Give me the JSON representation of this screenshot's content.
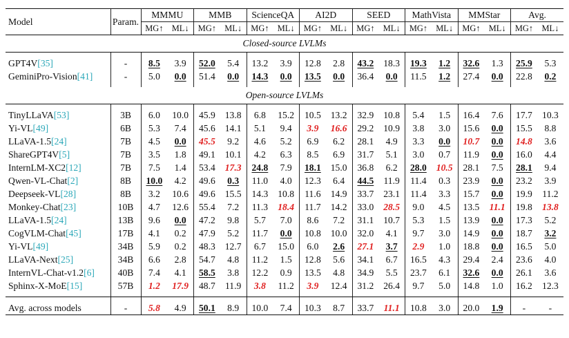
{
  "header": {
    "model": "Model",
    "param": "Param.",
    "benchmarks": [
      "MMMU",
      "MMB",
      "ScienceQA",
      "AI2D",
      "SEED",
      "MathVista",
      "MMStar",
      "Avg."
    ],
    "mg": "MG↑",
    "ml": "ML↓"
  },
  "sections": [
    {
      "title": "Closed-source LVLMs",
      "rows": [
        {
          "model": "GPT4V",
          "cite": "[35]",
          "param": "-",
          "cells": [
            {
              "v": "8.5",
              "s": "bu"
            },
            {
              "v": "3.9"
            },
            {
              "v": "52.0",
              "s": "bu"
            },
            {
              "v": "5.4"
            },
            {
              "v": "13.2"
            },
            {
              "v": "3.9"
            },
            {
              "v": "12.8"
            },
            {
              "v": "2.8"
            },
            {
              "v": "43.2",
              "s": "bu"
            },
            {
              "v": "18.3"
            },
            {
              "v": "19.3",
              "s": "bu"
            },
            {
              "v": "1.2",
              "s": "bu"
            },
            {
              "v": "32.6",
              "s": "bu"
            },
            {
              "v": "1.3"
            },
            {
              "v": "25.9",
              "s": "bu"
            },
            {
              "v": "5.3"
            }
          ]
        },
        {
          "model": "GeminiPro-Vision",
          "cite": "[41]",
          "param": "-",
          "cells": [
            {
              "v": "5.0"
            },
            {
              "v": "0.0",
              "s": "bu"
            },
            {
              "v": "51.4"
            },
            {
              "v": "0.0",
              "s": "bu"
            },
            {
              "v": "14.3",
              "s": "bu"
            },
            {
              "v": "0.0",
              "s": "bu"
            },
            {
              "v": "13.5",
              "s": "bu"
            },
            {
              "v": "0.0",
              "s": "bu"
            },
            {
              "v": "36.4"
            },
            {
              "v": "0.0",
              "s": "bu"
            },
            {
              "v": "11.5"
            },
            {
              "v": "1.2",
              "s": "bu"
            },
            {
              "v": "27.4"
            },
            {
              "v": "0.0",
              "s": "bu"
            },
            {
              "v": "22.8"
            },
            {
              "v": "0.2",
              "s": "bu"
            }
          ]
        }
      ]
    },
    {
      "title": "Open-source LVLMs",
      "rows": [
        {
          "model": "TinyLLaVA",
          "cite": "[53]",
          "param": "3B",
          "cells": [
            {
              "v": "6.0"
            },
            {
              "v": "10.0"
            },
            {
              "v": "45.9"
            },
            {
              "v": "13.8"
            },
            {
              "v": "6.8"
            },
            {
              "v": "15.2"
            },
            {
              "v": "10.5"
            },
            {
              "v": "13.2"
            },
            {
              "v": "32.9"
            },
            {
              "v": "10.8"
            },
            {
              "v": "5.4"
            },
            {
              "v": "1.5"
            },
            {
              "v": "16.4"
            },
            {
              "v": "7.6"
            },
            {
              "v": "17.7"
            },
            {
              "v": "10.3"
            }
          ]
        },
        {
          "model": "Yi-VL",
          "cite": "[49]",
          "param": "6B",
          "cells": [
            {
              "v": "5.3"
            },
            {
              "v": "7.4"
            },
            {
              "v": "45.6"
            },
            {
              "v": "14.1"
            },
            {
              "v": "5.1"
            },
            {
              "v": "9.4"
            },
            {
              "v": "3.9",
              "s": "r"
            },
            {
              "v": "16.6",
              "s": "r"
            },
            {
              "v": "29.2"
            },
            {
              "v": "10.9"
            },
            {
              "v": "3.8"
            },
            {
              "v": "3.0"
            },
            {
              "v": "15.6"
            },
            {
              "v": "0.0",
              "s": "bu"
            },
            {
              "v": "15.5"
            },
            {
              "v": "8.8"
            }
          ]
        },
        {
          "model": "LLaVA-1.5",
          "cite": "[24]",
          "param": "7B",
          "cells": [
            {
              "v": "4.5"
            },
            {
              "v": "0.0",
              "s": "bu"
            },
            {
              "v": "45.5",
              "s": "r"
            },
            {
              "v": "9.2"
            },
            {
              "v": "4.6"
            },
            {
              "v": "5.2"
            },
            {
              "v": "6.9"
            },
            {
              "v": "6.2"
            },
            {
              "v": "28.1"
            },
            {
              "v": "4.9"
            },
            {
              "v": "3.3"
            },
            {
              "v": "0.0",
              "s": "bu"
            },
            {
              "v": "10.7",
              "s": "r"
            },
            {
              "v": "0.0",
              "s": "bu"
            },
            {
              "v": "14.8",
              "s": "r"
            },
            {
              "v": "3.6"
            }
          ]
        },
        {
          "model": "ShareGPT4V",
          "cite": "[5]",
          "param": "7B",
          "cells": [
            {
              "v": "3.5"
            },
            {
              "v": "1.8"
            },
            {
              "v": "49.1"
            },
            {
              "v": "10.1"
            },
            {
              "v": "4.2"
            },
            {
              "v": "6.3"
            },
            {
              "v": "8.5"
            },
            {
              "v": "6.9"
            },
            {
              "v": "31.7"
            },
            {
              "v": "5.1"
            },
            {
              "v": "3.0"
            },
            {
              "v": "0.7"
            },
            {
              "v": "11.9"
            },
            {
              "v": "0.0",
              "s": "bu"
            },
            {
              "v": "16.0"
            },
            {
              "v": "4.4"
            }
          ]
        },
        {
          "model": "InternLM-XC2",
          "cite": "[12]",
          "param": "7B",
          "cells": [
            {
              "v": "7.5"
            },
            {
              "v": "1.4"
            },
            {
              "v": "53.4"
            },
            {
              "v": "17.3",
              "s": "r"
            },
            {
              "v": "24.8",
              "s": "bu"
            },
            {
              "v": "7.9"
            },
            {
              "v": "18.1",
              "s": "bu"
            },
            {
              "v": "15.0"
            },
            {
              "v": "36.8"
            },
            {
              "v": "6.2"
            },
            {
              "v": "28.0",
              "s": "bu"
            },
            {
              "v": "10.5",
              "s": "r"
            },
            {
              "v": "28.1"
            },
            {
              "v": "7.5"
            },
            {
              "v": "28.1",
              "s": "bu"
            },
            {
              "v": "9.4"
            }
          ]
        },
        {
          "model": "Qwen-VL-Chat",
          "cite": "[2]",
          "param": "8B",
          "cells": [
            {
              "v": "10.0",
              "s": "bu"
            },
            {
              "v": "4.2"
            },
            {
              "v": "49.6"
            },
            {
              "v": "0.3",
              "s": "bu"
            },
            {
              "v": "11.0"
            },
            {
              "v": "4.0"
            },
            {
              "v": "12.3"
            },
            {
              "v": "6.4"
            },
            {
              "v": "44.5",
              "s": "bu"
            },
            {
              "v": "11.9"
            },
            {
              "v": "11.4"
            },
            {
              "v": "0.3"
            },
            {
              "v": "23.9"
            },
            {
              "v": "0.0",
              "s": "bu"
            },
            {
              "v": "23.2"
            },
            {
              "v": "3.9"
            }
          ]
        },
        {
          "model": "Deepseek-VL",
          "cite": "[28]",
          "param": "8B",
          "cells": [
            {
              "v": "3.2"
            },
            {
              "v": "10.6"
            },
            {
              "v": "49.6"
            },
            {
              "v": "15.5"
            },
            {
              "v": "14.3"
            },
            {
              "v": "10.8"
            },
            {
              "v": "11.6"
            },
            {
              "v": "14.9"
            },
            {
              "v": "33.7"
            },
            {
              "v": "23.1"
            },
            {
              "v": "11.4"
            },
            {
              "v": "3.3"
            },
            {
              "v": "15.7"
            },
            {
              "v": "0.0",
              "s": "bu"
            },
            {
              "v": "19.9"
            },
            {
              "v": "11.2"
            }
          ]
        },
        {
          "model": "Monkey-Chat",
          "cite": "[23]",
          "param": "10B",
          "cells": [
            {
              "v": "4.7"
            },
            {
              "v": "12.6"
            },
            {
              "v": "55.4"
            },
            {
              "v": "7.2"
            },
            {
              "v": "11.3"
            },
            {
              "v": "18.4",
              "s": "r"
            },
            {
              "v": "11.7"
            },
            {
              "v": "14.2"
            },
            {
              "v": "33.0"
            },
            {
              "v": "28.5",
              "s": "r"
            },
            {
              "v": "9.0"
            },
            {
              "v": "4.5"
            },
            {
              "v": "13.5"
            },
            {
              "v": "11.1",
              "s": "r"
            },
            {
              "v": "19.8"
            },
            {
              "v": "13.8",
              "s": "r"
            }
          ]
        },
        {
          "model": "LLaVA-1.5",
          "cite": "[24]",
          "param": "13B",
          "cells": [
            {
              "v": "9.6"
            },
            {
              "v": "0.0",
              "s": "bu"
            },
            {
              "v": "47.2"
            },
            {
              "v": "9.8"
            },
            {
              "v": "5.7"
            },
            {
              "v": "7.0"
            },
            {
              "v": "8.6"
            },
            {
              "v": "7.2"
            },
            {
              "v": "31.1"
            },
            {
              "v": "10.7"
            },
            {
              "v": "5.3"
            },
            {
              "v": "1.5"
            },
            {
              "v": "13.9"
            },
            {
              "v": "0.0",
              "s": "bu"
            },
            {
              "v": "17.3"
            },
            {
              "v": "5.2"
            }
          ]
        },
        {
          "model": "CogVLM-Chat",
          "cite": "[45]",
          "param": "17B",
          "cells": [
            {
              "v": "4.1"
            },
            {
              "v": "0.2"
            },
            {
              "v": "47.9"
            },
            {
              "v": "5.2"
            },
            {
              "v": "11.7"
            },
            {
              "v": "0.0",
              "s": "bu"
            },
            {
              "v": "10.8"
            },
            {
              "v": "10.0"
            },
            {
              "v": "32.0"
            },
            {
              "v": "4.1"
            },
            {
              "v": "9.7"
            },
            {
              "v": "3.0"
            },
            {
              "v": "14.9"
            },
            {
              "v": "0.0",
              "s": "bu"
            },
            {
              "v": "18.7"
            },
            {
              "v": "3.2",
              "s": "bu"
            }
          ]
        },
        {
          "model": "Yi-VL",
          "cite": "[49]",
          "param": "34B",
          "cells": [
            {
              "v": "5.9"
            },
            {
              "v": "0.2"
            },
            {
              "v": "48.3"
            },
            {
              "v": "12.7"
            },
            {
              "v": "6.7"
            },
            {
              "v": "15.0"
            },
            {
              "v": "6.0"
            },
            {
              "v": "2.6",
              "s": "bu"
            },
            {
              "v": "27.1",
              "s": "r"
            },
            {
              "v": "3.7",
              "s": "bu"
            },
            {
              "v": "2.9",
              "s": "r"
            },
            {
              "v": "1.0"
            },
            {
              "v": "18.8"
            },
            {
              "v": "0.0",
              "s": "bu"
            },
            {
              "v": "16.5"
            },
            {
              "v": "5.0"
            }
          ]
        },
        {
          "model": "LLaVA-Next",
          "cite": "[25]",
          "param": "34B",
          "cells": [
            {
              "v": "6.6"
            },
            {
              "v": "2.8"
            },
            {
              "v": "54.7"
            },
            {
              "v": "4.8"
            },
            {
              "v": "11.2"
            },
            {
              "v": "1.5"
            },
            {
              "v": "12.8"
            },
            {
              "v": "5.6"
            },
            {
              "v": "34.1"
            },
            {
              "v": "6.7"
            },
            {
              "v": "16.5"
            },
            {
              "v": "4.3"
            },
            {
              "v": "29.4"
            },
            {
              "v": "2.4"
            },
            {
              "v": "23.6"
            },
            {
              "v": "4.0"
            }
          ]
        },
        {
          "model": "InternVL-Chat-v1.2",
          "cite": "[6]",
          "param": "40B",
          "cells": [
            {
              "v": "7.4"
            },
            {
              "v": "4.1"
            },
            {
              "v": "58.5",
              "s": "bu"
            },
            {
              "v": "3.8"
            },
            {
              "v": "12.2"
            },
            {
              "v": "0.9"
            },
            {
              "v": "13.5"
            },
            {
              "v": "4.8"
            },
            {
              "v": "34.9"
            },
            {
              "v": "5.5"
            },
            {
              "v": "23.7"
            },
            {
              "v": "6.1"
            },
            {
              "v": "32.6",
              "s": "bu"
            },
            {
              "v": "0.0",
              "s": "bu"
            },
            {
              "v": "26.1"
            },
            {
              "v": "3.6"
            }
          ]
        },
        {
          "model": "Sphinx-X-MoE",
          "cite": "[15]",
          "param": "57B",
          "cells": [
            {
              "v": "1.2",
              "s": "r"
            },
            {
              "v": "17.9",
              "s": "r"
            },
            {
              "v": "48.7"
            },
            {
              "v": "11.9"
            },
            {
              "v": "3.8",
              "s": "r"
            },
            {
              "v": "11.2"
            },
            {
              "v": "3.9",
              "s": "r"
            },
            {
              "v": "12.4"
            },
            {
              "v": "31.2"
            },
            {
              "v": "26.4"
            },
            {
              "v": "9.7"
            },
            {
              "v": "5.0"
            },
            {
              "v": "14.8"
            },
            {
              "v": "1.0"
            },
            {
              "v": "16.2"
            },
            {
              "v": "12.3"
            }
          ]
        }
      ]
    }
  ],
  "footer": {
    "model": "Avg. across models",
    "cite": "",
    "param": "-",
    "cells": [
      {
        "v": "5.8",
        "s": "r"
      },
      {
        "v": "4.9"
      },
      {
        "v": "50.1",
        "s": "bu"
      },
      {
        "v": "8.9"
      },
      {
        "v": "10.0"
      },
      {
        "v": "7.4"
      },
      {
        "v": "10.3"
      },
      {
        "v": "8.7"
      },
      {
        "v": "33.7"
      },
      {
        "v": "11.1",
        "s": "r"
      },
      {
        "v": "10.8"
      },
      {
        "v": "3.0"
      },
      {
        "v": "20.0"
      },
      {
        "v": "1.9",
        "s": "bu"
      },
      {
        "v": "-"
      },
      {
        "v": "-"
      }
    ]
  },
  "colors": {
    "citation": "#2aa7b8",
    "worst": "#e02020"
  }
}
